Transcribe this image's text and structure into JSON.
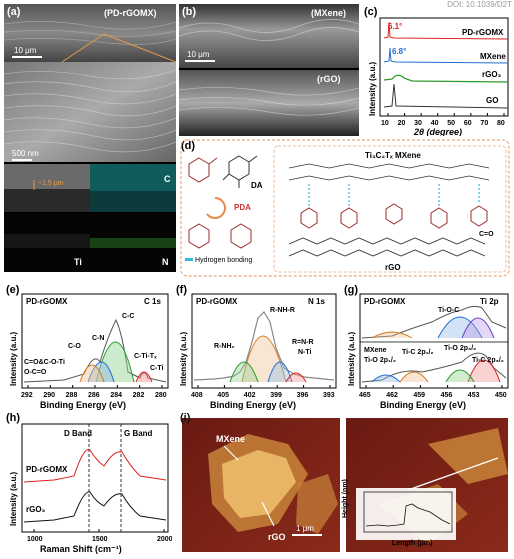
{
  "doi": "DOI: 10.1039/D2T",
  "panels": {
    "a": {
      "letter": "(a)",
      "sample": "(PD-rGOMX)",
      "scale_top": "10 μm",
      "scale_mid": "500 nm",
      "thickness": "~1.5 μm",
      "eds": {
        "C": "C",
        "Ti": "Ti",
        "N": "N"
      }
    },
    "b": {
      "letter": "(b)",
      "label_top": "(MXene)",
      "label_bot": "(rGO)",
      "scale": "10 μm"
    },
    "c": {
      "letter": "(c)",
      "peak1": "6.1°",
      "peak2": "6.8°",
      "series": [
        "PD-rGOMX",
        "MXene",
        "rGO₃",
        "GO"
      ],
      "ylabel": "Intensity (a.u.)",
      "xlabel": "2θ (degree)",
      "xticks": [
        "10",
        "20",
        "30",
        "40",
        "50",
        "60",
        "70",
        "80"
      ]
    },
    "d": {
      "letter": "(d)",
      "mxene": "Ti₃C₂Tₓ MXene",
      "da": "DA",
      "pda": "PDA",
      "hbond": "Hydrogen bonding",
      "rgo": "rGO",
      "cdo": "C=O"
    },
    "e": {
      "letter": "(e)",
      "sample": "PD-rGOMX",
      "title": "C 1s",
      "xlabel": "Binding Energy (eV)",
      "ylabel": "Intensity (a.u.)",
      "xticks": [
        "292",
        "290",
        "288",
        "286",
        "284",
        "282",
        "280"
      ],
      "peaks": [
        "C-C",
        "C-N",
        "C-O",
        "C=O&C-O-Ti",
        "O-C=O",
        "C-Ti-Tₓ",
        "C-Ti"
      ]
    },
    "f": {
      "letter": "(f)",
      "sample": "PD-rGOMX",
      "title": "N 1s",
      "xlabel": "Binding Energy (eV)",
      "ylabel": "Intensity (a.u.)",
      "xticks": [
        "408",
        "405",
        "402",
        "399",
        "396",
        "393"
      ],
      "peaks": [
        "R-NH-R",
        "R-NH₂",
        "R=N-R",
        "N-Ti"
      ]
    },
    "g": {
      "letter": "(g)",
      "sample": "PD-rGOMX",
      "title": "Ti 2p",
      "xlabel": "Binding Energy (eV)",
      "ylabel": "Intensity (a.u.)",
      "xticks": [
        "465",
        "462",
        "459",
        "456",
        "453",
        "450"
      ],
      "peaks": [
        "Ti-O-C",
        "MXene",
        "Ti-O 2p₁/₂",
        "Ti-C 2p₁/₂",
        "Ti-O 2p₃/₂",
        "Ti-C 2p₃/₂"
      ]
    },
    "h": {
      "letter": "(h)",
      "dband": "D Band",
      "gband": "G Band",
      "series": [
        "PD-rGOMX",
        "rGO₃"
      ],
      "xlabel": "Raman Shift (cm⁻¹)",
      "ylabel": "Intensity (a.u.)",
      "xticks": [
        "1000",
        "1500",
        "2000"
      ]
    },
    "i": {
      "letter": "(i)",
      "mxene": "MXene",
      "rgo": "rGO",
      "scale": "1 μm",
      "ylabel": "Height (nm)",
      "xlabel": "Length (μm)",
      "xticks": [
        "0.0",
        "0.5",
        "1.0",
        "1.5",
        "2.0"
      ],
      "yticks": [
        "0",
        "1",
        "2",
        "3"
      ]
    }
  },
  "chart_data": [
    {
      "type": "line",
      "title": "",
      "xlabel": "2θ (degree)",
      "ylabel": "Intensity (a.u.)",
      "xlim": [
        0,
        80
      ],
      "series": [
        {
          "name": "PD-rGOMX",
          "peak_x": 6.1
        },
        {
          "name": "MXene",
          "peak_x": 6.8
        },
        {
          "name": "rGO₃"
        },
        {
          "name": "GO",
          "peak_x": 10
        }
      ]
    },
    {
      "type": "line",
      "title": "C 1s",
      "xlabel": "Binding Energy (eV)",
      "ylabel": "Intensity (a.u.)",
      "xlim": [
        292,
        279
      ],
      "peaks": [
        {
          "name": "C-C",
          "x": 284.8
        },
        {
          "name": "C-N",
          "x": 285.8
        },
        {
          "name": "C-O",
          "x": 286.4
        },
        {
          "name": "C=O&C-O-Ti",
          "x": 288.3
        },
        {
          "name": "O-C=O",
          "x": 289.2
        },
        {
          "name": "C-Ti-Tₓ",
          "x": 282.0
        },
        {
          "name": "C-Ti",
          "x": 281.2
        }
      ]
    },
    {
      "type": "line",
      "title": "N 1s",
      "xlabel": "Binding Energy (eV)",
      "ylabel": "Intensity (a.u.)",
      "xlim": [
        408,
        393
      ],
      "peaks": [
        {
          "name": "R-NH-R",
          "x": 399.8
        },
        {
          "name": "R-NH₂",
          "x": 401.2
        },
        {
          "name": "R=N-R",
          "x": 398.6
        },
        {
          "name": "N-Ti",
          "x": 396.9
        }
      ]
    },
    {
      "type": "line",
      "title": "Ti 2p",
      "xlabel": "Binding Energy (eV)",
      "ylabel": "Intensity (a.u.)",
      "xlim": [
        466,
        450
      ]
    },
    {
      "type": "line",
      "title": "",
      "xlabel": "Raman Shift (cm⁻¹)",
      "ylabel": "Intensity (a.u.)",
      "xlim": [
        1000,
        2000
      ],
      "series": [
        {
          "name": "PD-rGOMX"
        },
        {
          "name": "rGO₃"
        }
      ],
      "bands": [
        {
          "name": "D Band",
          "x": 1350
        },
        {
          "name": "G Band",
          "x": 1590
        }
      ]
    },
    {
      "type": "line",
      "title": "",
      "xlabel": "Length (μm)",
      "ylabel": "Height (nm)",
      "xlim": [
        0,
        2.3
      ],
      "ylim": [
        0,
        3.5
      ]
    }
  ]
}
